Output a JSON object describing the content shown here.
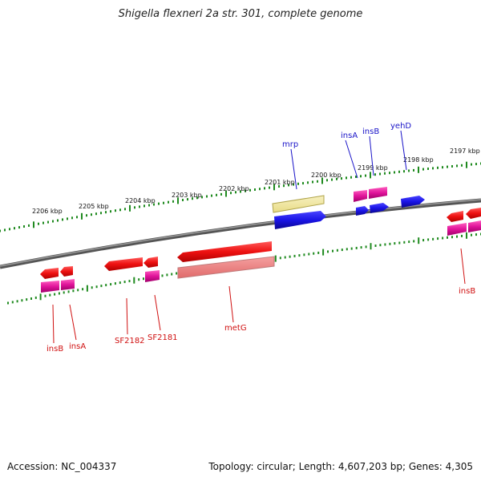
{
  "title": "Shigella flexneri 2a str. 301, complete genome",
  "accession": "Accession: NC_004337",
  "summary": "Topology: circular; Length: 4,607,203 bp; Genes: 4,305",
  "scale_labels": [
    {
      "text": "2206 kbp"
    },
    {
      "text": "2205 kbp"
    },
    {
      "text": "2204 kbp"
    },
    {
      "text": "2203 kbp"
    },
    {
      "text": "2202 kbp"
    },
    {
      "text": "2201 kbp"
    },
    {
      "text": "2200 kbp"
    },
    {
      "text": "2199 kbp"
    },
    {
      "text": "2198 kbp"
    },
    {
      "text": "2197 kbp"
    }
  ],
  "gene_labels": [
    {
      "text": "mrp"
    },
    {
      "text": "insA"
    },
    {
      "text": "insB"
    },
    {
      "text": "yehD"
    },
    {
      "text": "insB"
    },
    {
      "text": "insA"
    },
    {
      "text": "SF2182"
    },
    {
      "text": "SF2181"
    },
    {
      "text": "metG"
    },
    {
      "text": "insB"
    }
  ],
  "colors": {
    "top_label": "#1a14c8",
    "bottom_label": "#d01010",
    "cds_red": "#ee1111",
    "cds_pink": "#e0139a",
    "cds_blue": "#1a14e6",
    "cds_yellow": "#eee49a",
    "tick_green": "#1f8a1f",
    "backbone": "#7a7a7a"
  }
}
